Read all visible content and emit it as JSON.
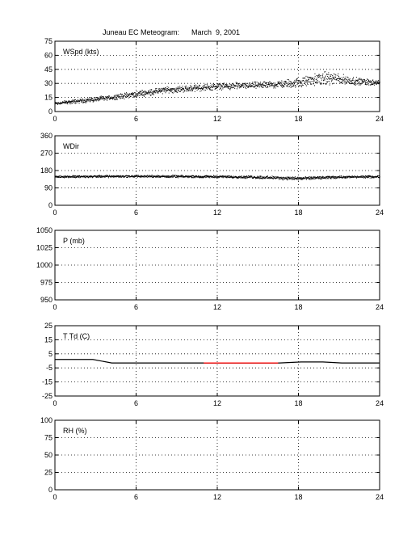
{
  "title": "Juneau EC Meteogram:      March  9, 2001",
  "chart_data": [
    {
      "type": "scatter",
      "panel_label": "WSpd (kts)",
      "xlim": [
        0,
        24
      ],
      "xticks": [
        0,
        6,
        12,
        18,
        24
      ],
      "ylim": [
        0,
        75
      ],
      "yticks": [
        0,
        15,
        30,
        45,
        60,
        75
      ],
      "grid": true,
      "trend_x": [
        0,
        2,
        4,
        6,
        8,
        10,
        12,
        14,
        16,
        18,
        19,
        20,
        21,
        22,
        23,
        24
      ],
      "trend_y": [
        9,
        12,
        15,
        19,
        23,
        25,
        27,
        28,
        29,
        31,
        34,
        36,
        35,
        33,
        32,
        31
      ],
      "spread": [
        2,
        3,
        3,
        4,
        4,
        4,
        4,
        4,
        4,
        6,
        7,
        8,
        7,
        5,
        4,
        3
      ],
      "color": "#000000"
    },
    {
      "type": "scatter",
      "panel_label": "WDir",
      "xlim": [
        0,
        24
      ],
      "xticks": [
        0,
        6,
        12,
        18,
        24
      ],
      "ylim": [
        0,
        360
      ],
      "yticks": [
        0,
        90,
        180,
        270,
        360
      ],
      "grid": true,
      "trend_x": [
        0,
        6,
        12,
        15,
        18,
        21,
        24
      ],
      "trend_y": [
        150,
        152,
        150,
        147,
        140,
        148,
        150
      ],
      "spread": [
        7,
        7,
        7,
        9,
        11,
        7,
        7
      ],
      "color": "#000000"
    },
    {
      "type": "line",
      "panel_label": "P (mb)",
      "xlim": [
        0,
        24
      ],
      "xticks": [
        0,
        6,
        12,
        18,
        24
      ],
      "ylim": [
        950,
        1050
      ],
      "yticks": [
        950,
        975,
        1000,
        1025,
        1050
      ],
      "grid": true,
      "series": []
    },
    {
      "type": "line",
      "panel_label": "T Td (C)",
      "xlim": [
        0,
        24
      ],
      "xticks": [
        0,
        6,
        12,
        18,
        24
      ],
      "ylim": [
        -25,
        25
      ],
      "yticks": [
        -25,
        -15,
        -5,
        5,
        15,
        25
      ],
      "grid": true,
      "series": [
        {
          "color": "#000000",
          "x": [
            0,
            2.8,
            4.2,
            10.3,
            16.6,
            18.2,
            19.8,
            21.2,
            24
          ],
          "y": [
            1,
            1,
            -1.5,
            -1.5,
            -1.5,
            -0.8,
            -0.8,
            -1.5,
            -1.5
          ]
        },
        {
          "color": "#ff0000",
          "x": [
            11,
            16.5
          ],
          "y": [
            -1.5,
            -1.5
          ]
        }
      ]
    },
    {
      "type": "line",
      "panel_label": "RH (%)",
      "xlim": [
        0,
        24
      ],
      "xticks": [
        0,
        6,
        12,
        18,
        24
      ],
      "ylim": [
        0,
        100
      ],
      "yticks": [
        0,
        25,
        50,
        75,
        100
      ],
      "grid": true,
      "series": []
    }
  ]
}
